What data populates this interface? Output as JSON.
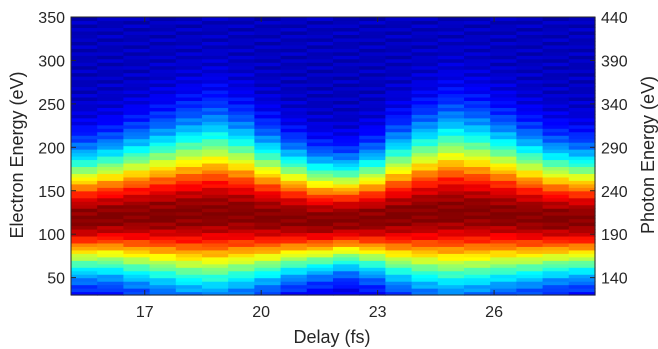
{
  "chart_data": {
    "type": "heatmap",
    "xlabel": "Delay (fs)",
    "ylabel": "Electron Energy (eV)",
    "y2label": "Photon Energy (eV)",
    "x_range_fs": [
      15.1,
      28.6
    ],
    "ylim": [
      30,
      350
    ],
    "y2lim": [
      120,
      440
    ],
    "x_ticks": [
      "17",
      "20",
      "23",
      "26"
    ],
    "x_tick_values": [
      17,
      20,
      23,
      26
    ],
    "y_ticks": [
      "50",
      "100",
      "150",
      "200",
      "250",
      "300",
      "350"
    ],
    "y_tick_values": [
      50,
      100,
      150,
      200,
      250,
      300,
      350
    ],
    "y2_ticks": [
      "140",
      "190",
      "240",
      "290",
      "340",
      "390",
      "440"
    ],
    "y2_tick_values": [
      140,
      190,
      240,
      290,
      340,
      390,
      440
    ],
    "colormap": "jet",
    "delay_columns_fs": [
      15.5,
      16.2,
      16.9,
      17.6,
      18.3,
      19.0,
      19.6,
      20.3,
      21.0,
      21.7,
      22.3,
      23.0,
      23.7,
      24.4,
      25.0,
      25.7,
      26.4,
      27.1,
      27.7,
      28.3
    ],
    "peak_electron_energy_eV": [
      118,
      120,
      121,
      122,
      123,
      124,
      123,
      120,
      118,
      116,
      117,
      118,
      121,
      124,
      126,
      125,
      123,
      120,
      118,
      117
    ],
    "spectral_width_eV": [
      46,
      48,
      52,
      56,
      60,
      62,
      58,
      52,
      46,
      42,
      40,
      44,
      52,
      58,
      62,
      60,
      56,
      52,
      48,
      46
    ]
  }
}
